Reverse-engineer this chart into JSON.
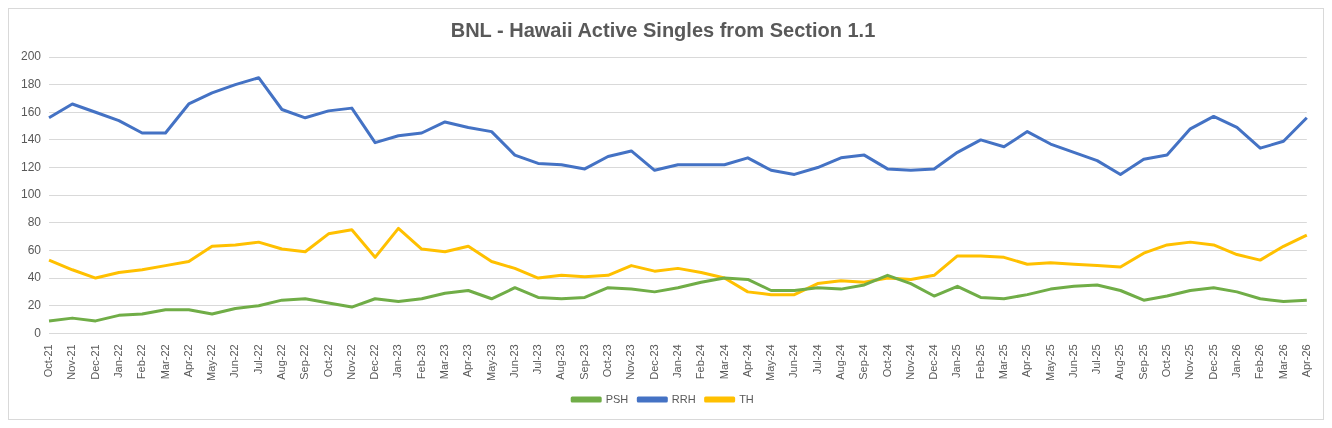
{
  "chart_data": {
    "type": "line",
    "title": "BNL - Hawaii Active Singles from Section 1.1",
    "categories": [
      "Oct-21",
      "Nov-21",
      "Dec-21",
      "Jan-22",
      "Feb-22",
      "Mar-22",
      "Apr-22",
      "May-22",
      "Jun-22",
      "Jul-22",
      "Aug-22",
      "Sep-22",
      "Oct-22",
      "Nov-22",
      "Dec-22",
      "Jan-23",
      "Feb-23",
      "Mar-23",
      "Apr-23",
      "May-23",
      "Jun-23",
      "Jul-23",
      "Aug-23",
      "Sep-23",
      "Oct-23",
      "Nov-23",
      "Dec-23",
      "Jan-24",
      "Feb-24",
      "Mar-24",
      "Apr-24",
      "May-24",
      "Jun-24",
      "Jul-24",
      "Aug-24",
      "Sep-24",
      "Oct-24",
      "Nov-24",
      "Dec-24",
      "Jan-25",
      "Feb-25",
      "Mar-25",
      "Apr-25",
      "May-25",
      "Jun-25",
      "Jul-25",
      "Aug-25",
      "Sep-25",
      "Oct-25",
      "Nov-25",
      "Dec-25",
      "Jan-26",
      "Feb-26",
      "Mar-26",
      "Apr-26"
    ],
    "series": [
      {
        "name": "PSH",
        "color": "#70ad47",
        "values": [
          9,
          11,
          9,
          13,
          14,
          17,
          17,
          14,
          18,
          20,
          24,
          25,
          22,
          19,
          25,
          23,
          25,
          29,
          31,
          25,
          33,
          26,
          25,
          26,
          33,
          32,
          30,
          33,
          37,
          40,
          39,
          31,
          31,
          33,
          32,
          35,
          42,
          36,
          27,
          34,
          26,
          25,
          28,
          32,
          34,
          35,
          31,
          24,
          27,
          31,
          33,
          30,
          25,
          23,
          24
        ]
      },
      {
        "name": "RRH",
        "color": "#4472c4",
        "values": [
          156,
          166,
          160,
          154,
          145,
          145,
          166,
          174,
          180,
          185,
          162,
          156,
          161,
          163,
          138,
          143,
          145,
          153,
          149,
          146,
          129,
          123,
          122,
          119,
          128,
          132,
          118,
          122,
          122,
          122,
          127,
          118,
          115,
          120,
          127,
          129,
          119,
          118,
          119,
          131,
          140,
          135,
          146,
          137,
          131,
          125,
          115,
          126,
          129,
          148,
          157,
          149,
          134,
          139,
          156
        ]
      },
      {
        "name": "TH",
        "color": "#ffc000",
        "values": [
          53,
          46,
          40,
          44,
          46,
          49,
          52,
          63,
          64,
          66,
          61,
          59,
          72,
          75,
          55,
          76,
          61,
          59,
          63,
          52,
          47,
          40,
          42,
          41,
          42,
          49,
          45,
          47,
          44,
          40,
          30,
          28,
          28,
          36,
          38,
          37,
          40,
          39,
          42,
          56,
          56,
          55,
          50,
          51,
          50,
          49,
          48,
          58,
          64,
          66,
          64,
          57,
          53,
          63,
          71
        ]
      }
    ],
    "ylim": [
      0,
      200
    ],
    "yticks": [
      0,
      20,
      40,
      60,
      80,
      100,
      120,
      140,
      160,
      180,
      200
    ],
    "grid": "y",
    "legend": "bottom",
    "marker": "none",
    "line_style": "solid"
  }
}
